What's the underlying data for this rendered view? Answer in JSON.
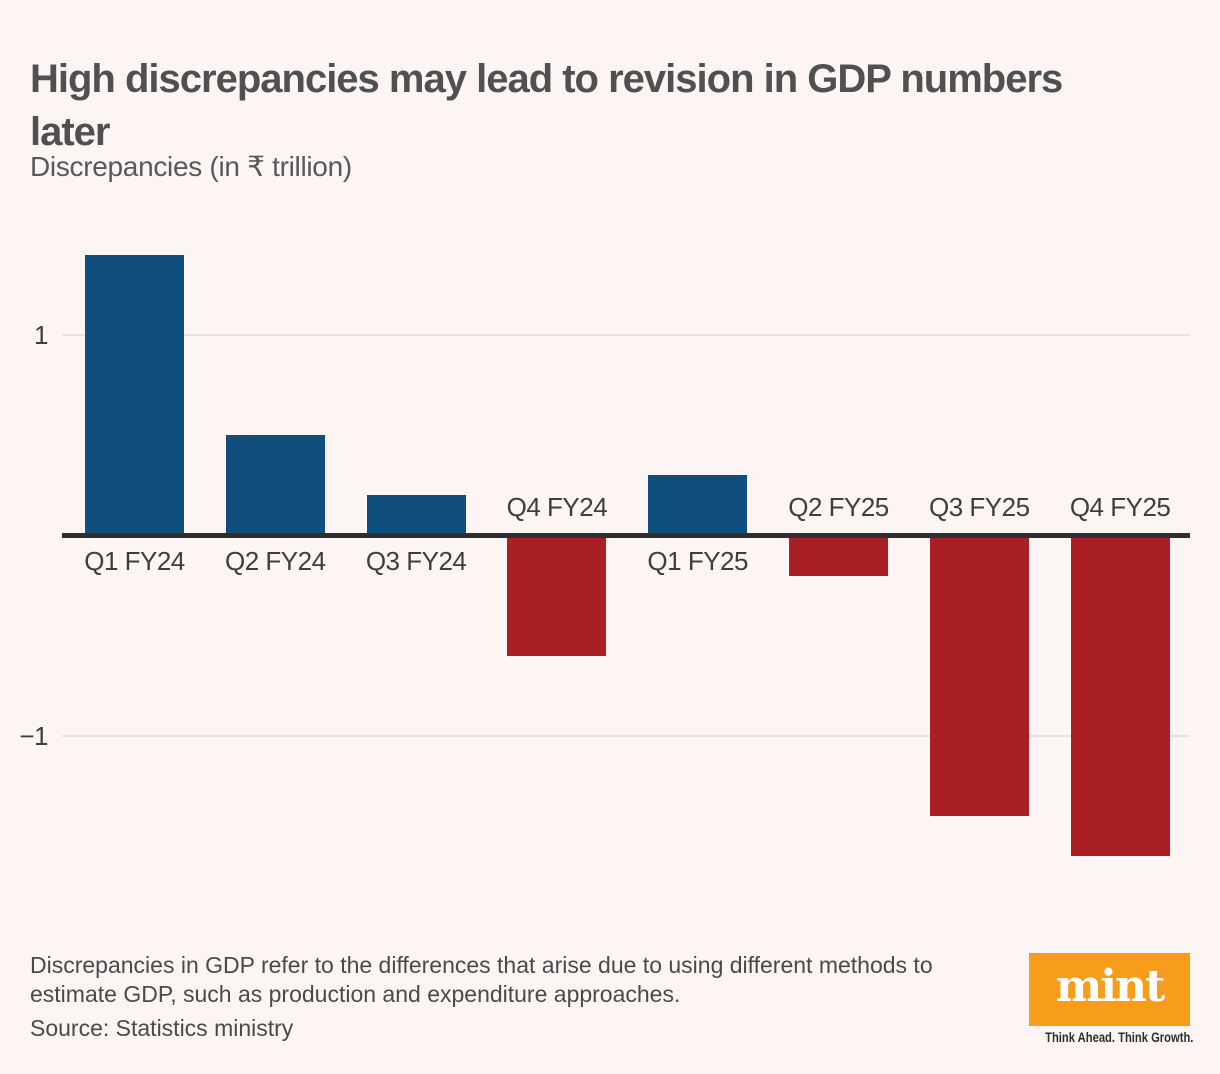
{
  "header": {
    "title_line1": "High discrepancies may lead to revision in GDP numbers",
    "title_line2": "later",
    "subtitle": "Discrepancies (in ₹ trillion)"
  },
  "chart_data": {
    "type": "bar",
    "title": "High discrepancies may lead to revision in GDP numbers later",
    "unit_note": "Discrepancies (in ₹ trillion)",
    "categories": [
      "Q1 FY24",
      "Q2 FY24",
      "Q3 FY24",
      "Q4 FY24",
      "Q1 FY25",
      "Q2 FY25",
      "Q3 FY25",
      "Q4 FY25"
    ],
    "values": [
      1.4,
      0.5,
      0.2,
      -0.6,
      0.3,
      -0.2,
      -1.4,
      -1.6
    ],
    "xlabel": "",
    "ylabel": "",
    "ylim": [
      -1.75,
      1.52
    ],
    "yticks": [
      1,
      -1
    ],
    "ytick_labels": [
      "1",
      "−1"
    ],
    "grid": "horizontal-at-ticks",
    "legend": "none",
    "bar_colors": {
      "positive": "#104e7e",
      "negative": "#a91f23"
    },
    "category_label_placement": "opposite side of zero axis from bar"
  },
  "footer": {
    "note": "Discrepancies in GDP refer to the differences that arise due to using different methods to estimate GDP, such as production and expenditure approaches.",
    "source": "Source: Statistics ministry"
  },
  "branding": {
    "logo_text": "mint",
    "tagline": "Think Ahead. Think Growth.",
    "logo_bg_color": "#f89c1b",
    "logo_text_color": "#ffffff"
  },
  "colors": {
    "background": "#fdf5f4",
    "title_text": "#505052",
    "body_text": "#4a4a4a",
    "axis_line": "#2f2f2f",
    "gridline": "#e8e2e0",
    "tick_label": "#3e3e3e"
  }
}
